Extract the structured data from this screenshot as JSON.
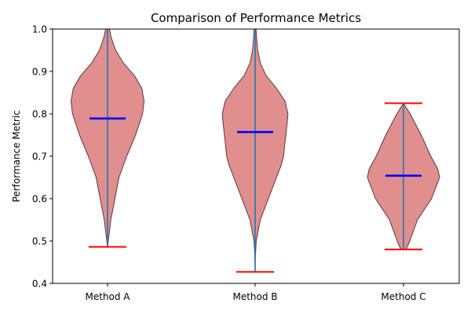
{
  "chart_data": {
    "type": "violin",
    "title": "Comparison of Performance Metrics",
    "xlabel": "",
    "ylabel": "Performance Metric",
    "ylim": [
      0.4,
      1.0
    ],
    "yticks": [
      "0.4",
      "0.5",
      "0.6",
      "0.7",
      "0.8",
      "0.9",
      "1.0"
    ],
    "grid": false,
    "categories": [
      "Method A",
      "Method B",
      "Method C"
    ],
    "violins": [
      {
        "category": "Method A",
        "min": 0.486,
        "max": 1.04,
        "median": 0.789,
        "profile": [
          [
            0.486,
            0.0
          ],
          [
            0.5,
            0.02
          ],
          [
            0.55,
            0.09
          ],
          [
            0.6,
            0.2
          ],
          [
            0.65,
            0.31
          ],
          [
            0.7,
            0.52
          ],
          [
            0.75,
            0.76
          ],
          [
            0.8,
            0.95
          ],
          [
            0.83,
            0.99
          ],
          [
            0.86,
            0.93
          ],
          [
            0.89,
            0.73
          ],
          [
            0.92,
            0.43
          ],
          [
            0.95,
            0.22
          ],
          [
            0.98,
            0.1
          ],
          [
            1.01,
            0.03
          ],
          [
            1.04,
            0.0
          ]
        ]
      },
      {
        "category": "Method B",
        "min": 0.427,
        "max": 1.04,
        "median": 0.757,
        "profile": [
          [
            0.427,
            0.0
          ],
          [
            0.46,
            0.005
          ],
          [
            0.5,
            0.03
          ],
          [
            0.55,
            0.14
          ],
          [
            0.6,
            0.36
          ],
          [
            0.65,
            0.58
          ],
          [
            0.68,
            0.71
          ],
          [
            0.7,
            0.77
          ],
          [
            0.74,
            0.82
          ],
          [
            0.78,
            0.87
          ],
          [
            0.8,
            0.89
          ],
          [
            0.83,
            0.81
          ],
          [
            0.86,
            0.58
          ],
          [
            0.89,
            0.3
          ],
          [
            0.92,
            0.14
          ],
          [
            0.95,
            0.07
          ],
          [
            0.98,
            0.04
          ],
          [
            1.01,
            0.015
          ],
          [
            1.04,
            0.0
          ]
        ]
      },
      {
        "category": "Method C",
        "min": 0.48,
        "max": 0.825,
        "median": 0.654,
        "profile": [
          [
            0.48,
            0.07
          ],
          [
            0.5,
            0.17
          ],
          [
            0.55,
            0.38
          ],
          [
            0.6,
            0.76
          ],
          [
            0.65,
            0.98
          ],
          [
            0.67,
            0.93
          ],
          [
            0.7,
            0.74
          ],
          [
            0.75,
            0.48
          ],
          [
            0.8,
            0.18
          ],
          [
            0.825,
            0.0
          ]
        ]
      }
    ],
    "colors": {
      "body": "#e08e8e",
      "edge": "#5a3a3a",
      "center_line": "#1f77b4",
      "extrema": "#ff0000",
      "median": "#0000ff"
    }
  }
}
